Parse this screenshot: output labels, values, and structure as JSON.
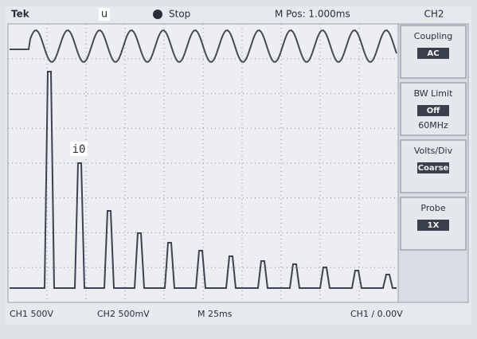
{
  "header": {
    "brand": "Tek",
    "channel_marker": "u",
    "status": "Stop",
    "position": "M Pos: 1.000ms",
    "menu_channel": "CH2"
  },
  "trace_label": "i0",
  "menu": [
    {
      "title": "Coupling",
      "value": "AC"
    },
    {
      "title": "BW Limit",
      "value": "Off",
      "note": "60MHz"
    },
    {
      "title": "Volts/Div",
      "value": "Coarse"
    },
    {
      "title": "Probe",
      "value": "1X"
    }
  ],
  "footer": {
    "ch1": "CH1 500V",
    "ch2": "CH2 500mV",
    "time": "M 25ms",
    "trigger": "CH1 ∕ 0.00V"
  }
}
